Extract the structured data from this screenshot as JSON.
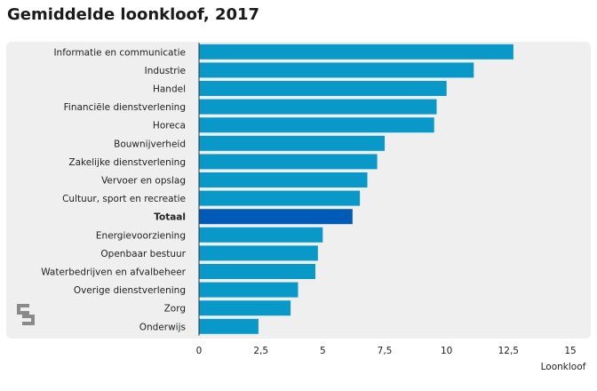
{
  "chart_data": {
    "type": "bar",
    "orientation": "horizontal",
    "title": "Gemiddelde loonkloof, 2017",
    "xlabel": "Loonkloof",
    "categories": [
      "Informatie en communicatie",
      "Industrie",
      "Handel",
      "Financiële dienstverlening",
      "Horeca",
      "Bouwnijverheid",
      "Zakelijke dienstverlening",
      "Vervoer en opslag",
      "Cultuur, sport en recreatie",
      "Totaal",
      "Energievoorziening",
      "Openbaar bestuur",
      "Waterbedrijven en afvalbeheer",
      "Overige dienstverlening",
      "Zorg",
      "Onderwijs"
    ],
    "values": [
      12.7,
      11.1,
      10.0,
      9.6,
      9.5,
      7.5,
      7.2,
      6.8,
      6.5,
      6.2,
      5.0,
      4.8,
      4.7,
      4.0,
      3.7,
      2.4
    ],
    "highlight": "Totaal",
    "xlim": [
      0,
      15
    ],
    "ticks": [
      0,
      2.5,
      5,
      7.5,
      10,
      12.5,
      15
    ],
    "tick_labels": [
      "0",
      "2,5",
      "5",
      "7,5",
      "10",
      "12,5",
      "15"
    ],
    "colors": {
      "bar": "#0899c9",
      "highlight": "#005bb8",
      "panel": "#efefef"
    },
    "grid": false
  },
  "logo": {
    "icon": "cbs-logo-icon"
  }
}
